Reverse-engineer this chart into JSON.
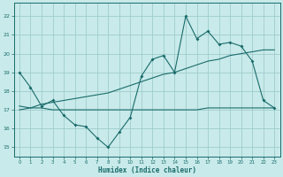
{
  "xlabel": "Humidex (Indice chaleur)",
  "background_color": "#c8eaea",
  "grid_color": "#a0cccc",
  "line_color": "#1a6b6b",
  "xlim": [
    -0.5,
    23.5
  ],
  "ylim": [
    14.5,
    22.7
  ],
  "yticks": [
    15,
    16,
    17,
    18,
    19,
    20,
    21,
    22
  ],
  "xticks": [
    0,
    1,
    2,
    3,
    4,
    5,
    6,
    7,
    8,
    9,
    10,
    11,
    12,
    13,
    14,
    15,
    16,
    17,
    18,
    19,
    20,
    21,
    22,
    23
  ],
  "series1_x": [
    0,
    1,
    2,
    3,
    4,
    5,
    6,
    7,
    8,
    9,
    10,
    11,
    12,
    13,
    14,
    15,
    16,
    17,
    18,
    19,
    20,
    21,
    22,
    23
  ],
  "series1_y": [
    19.0,
    18.2,
    17.2,
    17.5,
    16.7,
    16.2,
    16.1,
    15.5,
    15.0,
    15.8,
    16.6,
    18.8,
    19.7,
    19.9,
    19.0,
    22.0,
    20.8,
    21.2,
    20.5,
    20.6,
    20.4,
    19.6,
    17.5,
    17.1
  ],
  "series2_x": [
    0,
    1,
    2,
    3,
    4,
    5,
    6,
    7,
    8,
    9,
    10,
    11,
    12,
    13,
    14,
    15,
    16,
    17,
    18,
    19,
    20,
    21,
    22,
    23
  ],
  "series2_y": [
    17.2,
    17.1,
    17.1,
    17.0,
    17.0,
    17.0,
    17.0,
    17.0,
    17.0,
    17.0,
    17.0,
    17.0,
    17.0,
    17.0,
    17.0,
    17.0,
    17.0,
    17.1,
    17.1,
    17.1,
    17.1,
    17.1,
    17.1,
    17.1
  ],
  "series3_x": [
    0,
    1,
    2,
    3,
    4,
    5,
    6,
    7,
    8,
    9,
    10,
    11,
    12,
    13,
    14,
    15,
    16,
    17,
    18,
    19,
    20,
    21,
    22,
    23
  ],
  "series3_y": [
    17.0,
    17.1,
    17.3,
    17.4,
    17.5,
    17.6,
    17.7,
    17.8,
    17.9,
    18.1,
    18.3,
    18.5,
    18.7,
    18.9,
    19.0,
    19.2,
    19.4,
    19.6,
    19.7,
    19.9,
    20.0,
    20.1,
    20.2,
    20.2
  ]
}
